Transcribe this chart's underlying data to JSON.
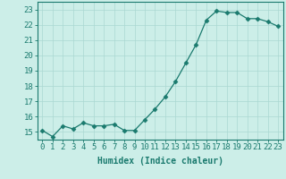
{
  "xlabel": "Humidex (Indice chaleur)",
  "x": [
    0,
    1,
    2,
    3,
    4,
    5,
    6,
    7,
    8,
    9,
    10,
    11,
    12,
    13,
    14,
    15,
    16,
    17,
    18,
    19,
    20,
    21,
    22,
    23
  ],
  "y": [
    15.1,
    14.7,
    15.4,
    15.2,
    15.6,
    15.4,
    15.4,
    15.5,
    15.1,
    15.1,
    15.8,
    16.5,
    17.3,
    18.3,
    19.5,
    20.7,
    22.3,
    22.9,
    22.8,
    22.8,
    22.4,
    22.4,
    22.2,
    21.9
  ],
  "line_color": "#1a7a6e",
  "marker": "D",
  "marker_size": 2.5,
  "bg_color": "#cceee8",
  "grid_color": "#aad8d2",
  "ylim": [
    14.5,
    23.5
  ],
  "yticks": [
    15,
    16,
    17,
    18,
    19,
    20,
    21,
    22,
    23
  ],
  "xlim": [
    -0.5,
    23.5
  ],
  "label_fontsize": 7,
  "tick_fontsize": 6.5
}
